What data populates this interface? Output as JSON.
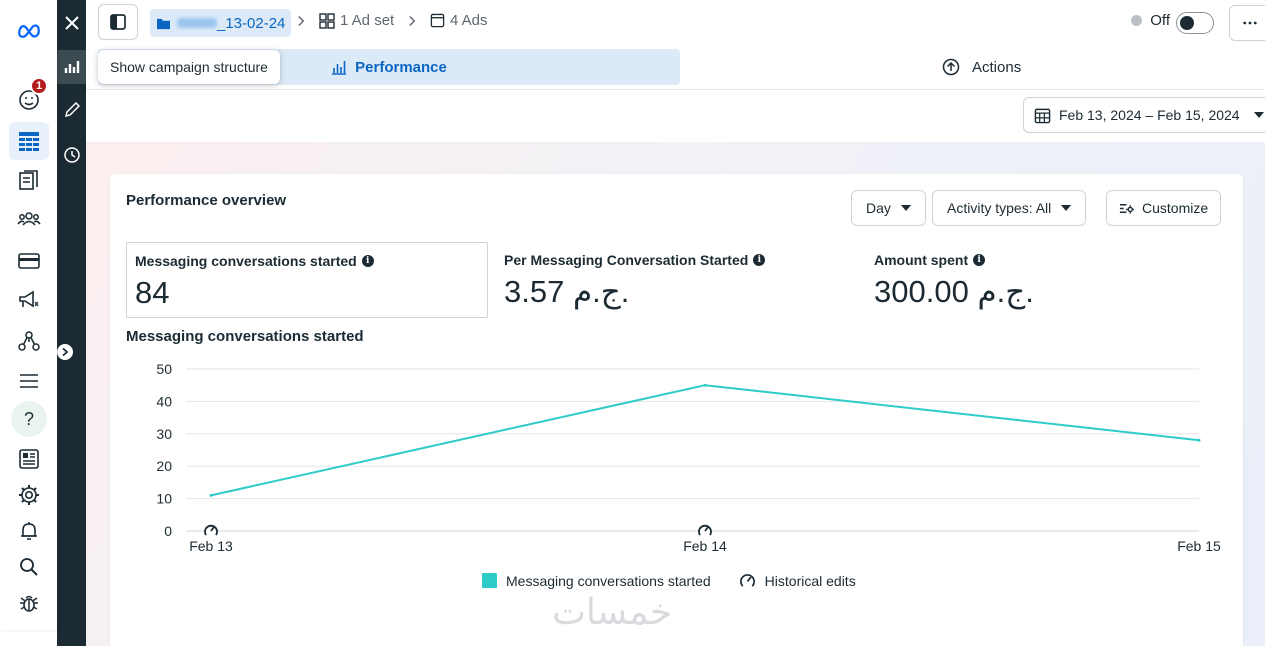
{
  "top_bar": {
    "campaign_name_suffix": "_13-02-24",
    "ad_set_label": "1 Ad set",
    "ads_label": "4 Ads",
    "status_label": "Off",
    "tooltip": "Show campaign structure"
  },
  "tabs": {
    "performance": "Performance",
    "actions": "Actions"
  },
  "date_range": "Feb 13, 2024 – Feb 15, 2024",
  "left_nav": {
    "notification_count": "1"
  },
  "overview": {
    "title": "Performance overview",
    "controls": {
      "granularity": "Day",
      "activity_types": "Activity types: All",
      "customize": "Customize"
    },
    "metrics": [
      {
        "label": "Messaging conversations started",
        "value": "84"
      },
      {
        "label": "Per Messaging Conversation Started",
        "value": "3.57 ج.م."
      },
      {
        "label": "Amount spent",
        "value": "300.00 ج.م."
      }
    ],
    "chart_title": "Messaging conversations started"
  },
  "chart_data": {
    "type": "line",
    "x": [
      "Feb 13",
      "Feb 14",
      "Feb 15"
    ],
    "series": [
      {
        "name": "Messaging conversations started",
        "values": [
          11,
          45,
          28
        ],
        "color": "#2ecbc8"
      }
    ],
    "ylim": [
      0,
      50
    ],
    "yticks": [
      0,
      10,
      20,
      30,
      40,
      50
    ],
    "grid": true,
    "legend_position": "bottom",
    "historical_edit_markers": [
      "Feb 13",
      "Feb 14"
    ]
  },
  "legend": {
    "series_label": "Messaging conversations started",
    "historical_edits_label": "Historical edits"
  },
  "watermark": "خمسات"
}
